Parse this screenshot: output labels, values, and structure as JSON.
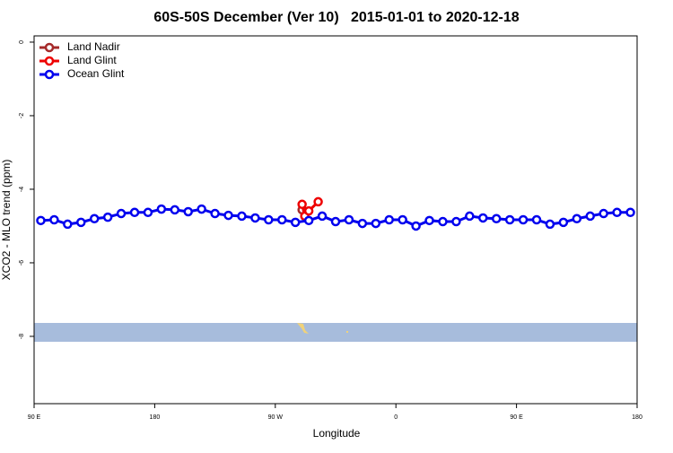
{
  "chart_data": {
    "type": "line",
    "title": "60S-50S December (Ver 10)   2015-01-01 to 2020-12-18",
    "xlabel": "Longitude",
    "ylabel": "XCO2 - MLO trend (ppm)",
    "xlim": [
      90,
      540
    ],
    "ylim": [
      -9.83,
      0.17
    ],
    "xticks": [
      {
        "value": 90,
        "label": "90 E"
      },
      {
        "value": 180,
        "label": "180"
      },
      {
        "value": 270,
        "label": "90 W"
      },
      {
        "value": 360,
        "label": "0"
      },
      {
        "value": 450,
        "label": "90 E"
      },
      {
        "value": 540,
        "label": "180"
      }
    ],
    "yticks": [
      0,
      -2,
      -4,
      -6,
      -8
    ],
    "legend": "top-left",
    "series": [
      {
        "name": "Land Nadir",
        "color": "#a52a2a",
        "x": [
          290
        ],
        "values": [
          -4.56
        ]
      },
      {
        "name": "Land Glint",
        "color": "#ee0000",
        "x": [
          290,
          292,
          295,
          302
        ],
        "values": [
          -4.41,
          -4.73,
          -4.59,
          -4.34
        ]
      },
      {
        "name": "Ocean Glint",
        "color": "#0000ee",
        "x": [
          95,
          105,
          115,
          125,
          135,
          145,
          155,
          165,
          175,
          185,
          195,
          205,
          215,
          225,
          235,
          245,
          255,
          265,
          275,
          285,
          295,
          305,
          315,
          325,
          335,
          345,
          355,
          365,
          375,
          385,
          395,
          405,
          415,
          425,
          435,
          445,
          455,
          465,
          475,
          485,
          495,
          505,
          515,
          525,
          535
        ],
        "values": [
          -4.85,
          -4.83,
          -4.95,
          -4.9,
          -4.8,
          -4.76,
          -4.66,
          -4.63,
          -4.63,
          -4.54,
          -4.56,
          -4.61,
          -4.54,
          -4.66,
          -4.71,
          -4.73,
          -4.78,
          -4.83,
          -4.83,
          -4.9,
          -4.85,
          -4.73,
          -4.88,
          -4.83,
          -4.93,
          -4.93,
          -4.83,
          -4.83,
          -5.0,
          -4.85,
          -4.88,
          -4.88,
          -4.73,
          -4.78,
          -4.8,
          -4.83,
          -4.83,
          -4.83,
          -4.95,
          -4.9,
          -4.8,
          -4.73,
          -4.66,
          -4.63,
          -4.63
        ]
      }
    ]
  }
}
